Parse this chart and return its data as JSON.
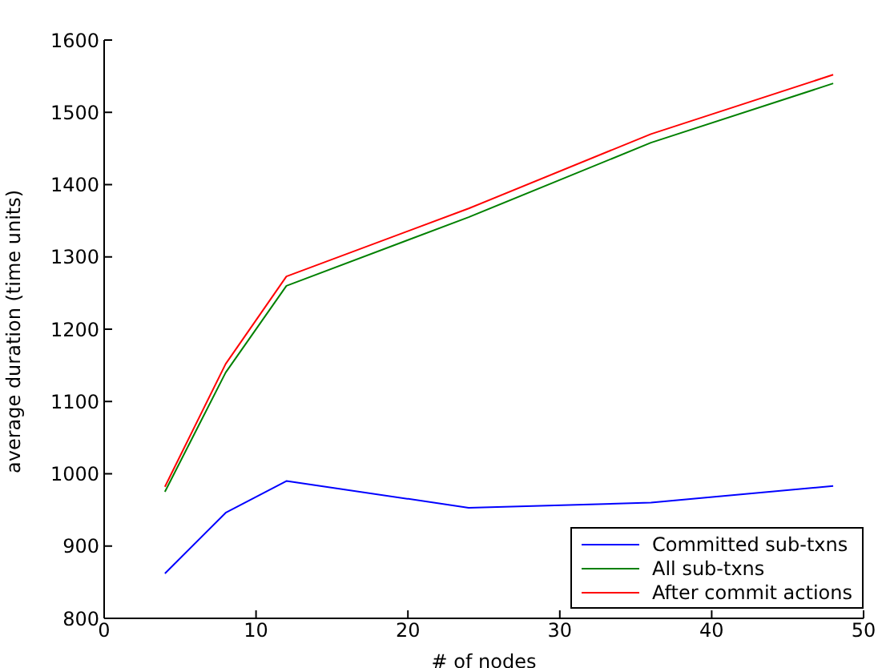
{
  "chart_data": {
    "type": "line",
    "xlabel": "# of nodes",
    "ylabel": "average duration (time units)",
    "x": [
      4,
      8,
      12,
      24,
      36,
      48
    ],
    "series": [
      {
        "name": "Committed sub-txns",
        "color": "#0000ff",
        "values": [
          862,
          946,
          990,
          953,
          960,
          983
        ]
      },
      {
        "name": "All sub-txns",
        "color": "#008000",
        "values": [
          975,
          1140,
          1260,
          1355,
          1458,
          1540
        ]
      },
      {
        "name": "After commit actions",
        "color": "#ff0000",
        "values": [
          982,
          1152,
          1273,
          1367,
          1470,
          1552
        ]
      }
    ],
    "xlim": [
      0,
      50
    ],
    "xticks": [
      0,
      10,
      20,
      30,
      40,
      50
    ],
    "ylim": [
      800,
      1600
    ],
    "yticks": [
      800,
      900,
      1000,
      1100,
      1200,
      1300,
      1400,
      1500,
      1600
    ],
    "grid": false,
    "legend": "bottom right",
    "marker": "none",
    "line_style": "solid"
  }
}
